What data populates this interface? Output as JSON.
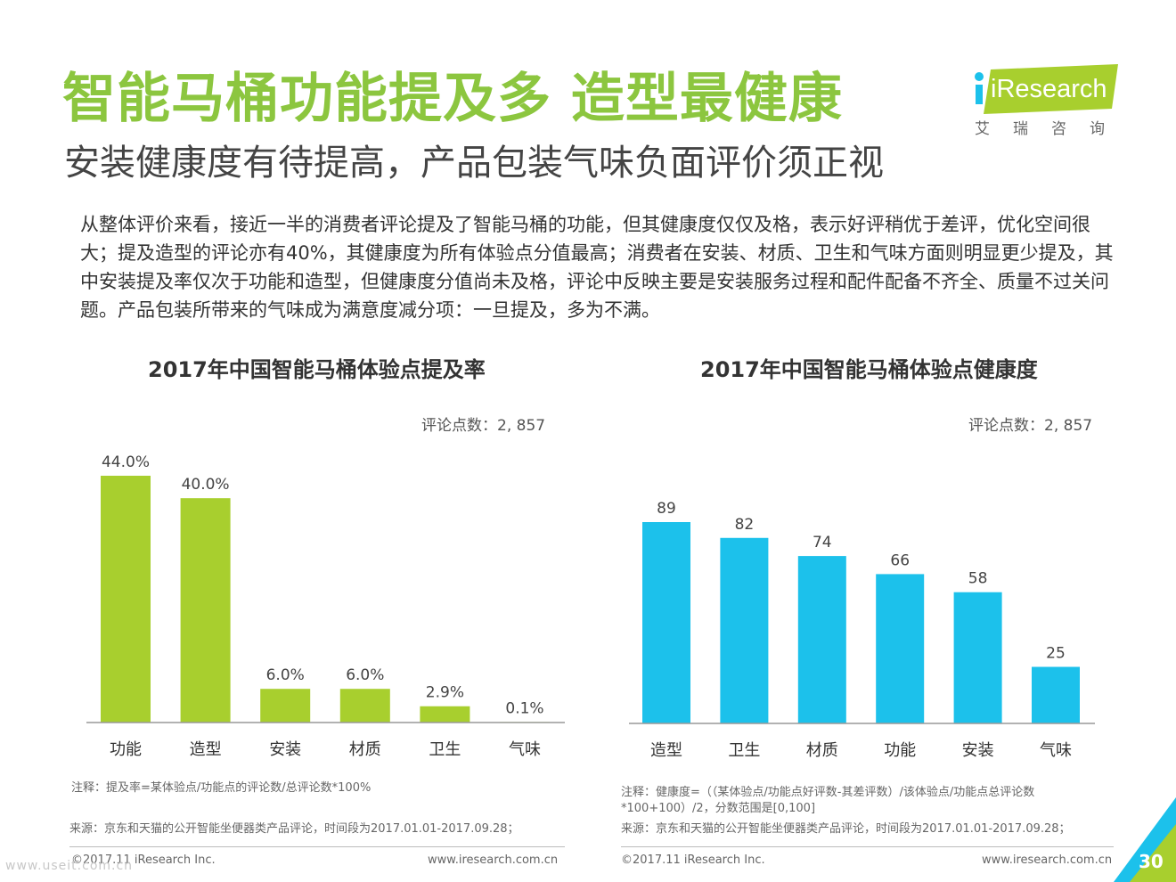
{
  "header": {
    "title": "智能马桶功能提及多 造型最健康",
    "subtitle": "安装健康度有待提高，产品包装气味负面评价须正视"
  },
  "logo": {
    "brand": "iResearch",
    "brand_cn": "艾瑞咨询"
  },
  "description": "从整体评价来看，接近一半的消费者评论提及了智能马桶的功能，但其健康度仅仅及格，表示好评稍优于差评，优化空间很大；提及造型的评论亦有40%，其健康度为所有体验点分值最高；消费者在安装、材质、卫生和气味方面则明显更少提及，其中安装提及率仅次于功能和造型，但健康度分值尚未及格，评论中反映主要是安装服务过程和配件配备不齐全、质量不过关问题。产品包装所带来的气味成为满意度减分项：一旦提及，多为不满。",
  "chart_data": [
    {
      "type": "bar",
      "title": "2017年中国智能马桶体验点提及率",
      "annotation": "评论点数：2, 857",
      "categories": [
        "功能",
        "造型",
        "安装",
        "材质",
        "卫生",
        "气味"
      ],
      "values": [
        44.0,
        40.0,
        6.0,
        6.0,
        2.9,
        0.1
      ],
      "value_labels": [
        "44.0%",
        "40.0%",
        "6.0%",
        "6.0%",
        "2.9%",
        "0.1%"
      ],
      "unit": "%",
      "ylim": [
        0,
        50
      ],
      "grid": false,
      "color": "#a8cf2e"
    },
    {
      "type": "bar",
      "title": "2017年中国智能马桶体验点健康度",
      "annotation": "评论点数：2, 857",
      "categories": [
        "造型",
        "卫生",
        "材质",
        "功能",
        "安装",
        "气味"
      ],
      "values": [
        89,
        82,
        74,
        66,
        58,
        25
      ],
      "value_labels": [
        "89",
        "82",
        "74",
        "66",
        "58",
        "25"
      ],
      "ylim": [
        0,
        100
      ],
      "grid": false,
      "color": "#1cc1eb"
    }
  ],
  "notes": {
    "left_note": "注释：提及率=某体验点/功能点的评论数/总评论数*100%",
    "left_source": "来源：京东和天猫的公开智能坐便器类产品评论，时间段为2017.01.01-2017.09.28；",
    "right_note_1": "注释：健康度=（（某体验点/功能点好评数-其差评数）/该体验点/功能点总评论数",
    "right_note_2": "*100+100）/2，分数范围是[0,100]",
    "right_source": "来源：京东和天猫的公开智能坐便器类产品评论，时间段为2017.01.01-2017.09.28；"
  },
  "footer": {
    "copyright_left": "©2017.11 iResearch Inc.",
    "url_left": "www.iresearch.com.cn",
    "copyright_right": "©2017.11 iResearch Inc.",
    "url_right": "www.iresearch.com.cn",
    "page_number": "30",
    "watermark": "www.useit.com.cn"
  },
  "colors": {
    "title_green": "#8cc63f",
    "logo_green": "#a8cf2e",
    "corner_blue": "#1cc1eb",
    "corner_green": "#a8cf2e"
  }
}
